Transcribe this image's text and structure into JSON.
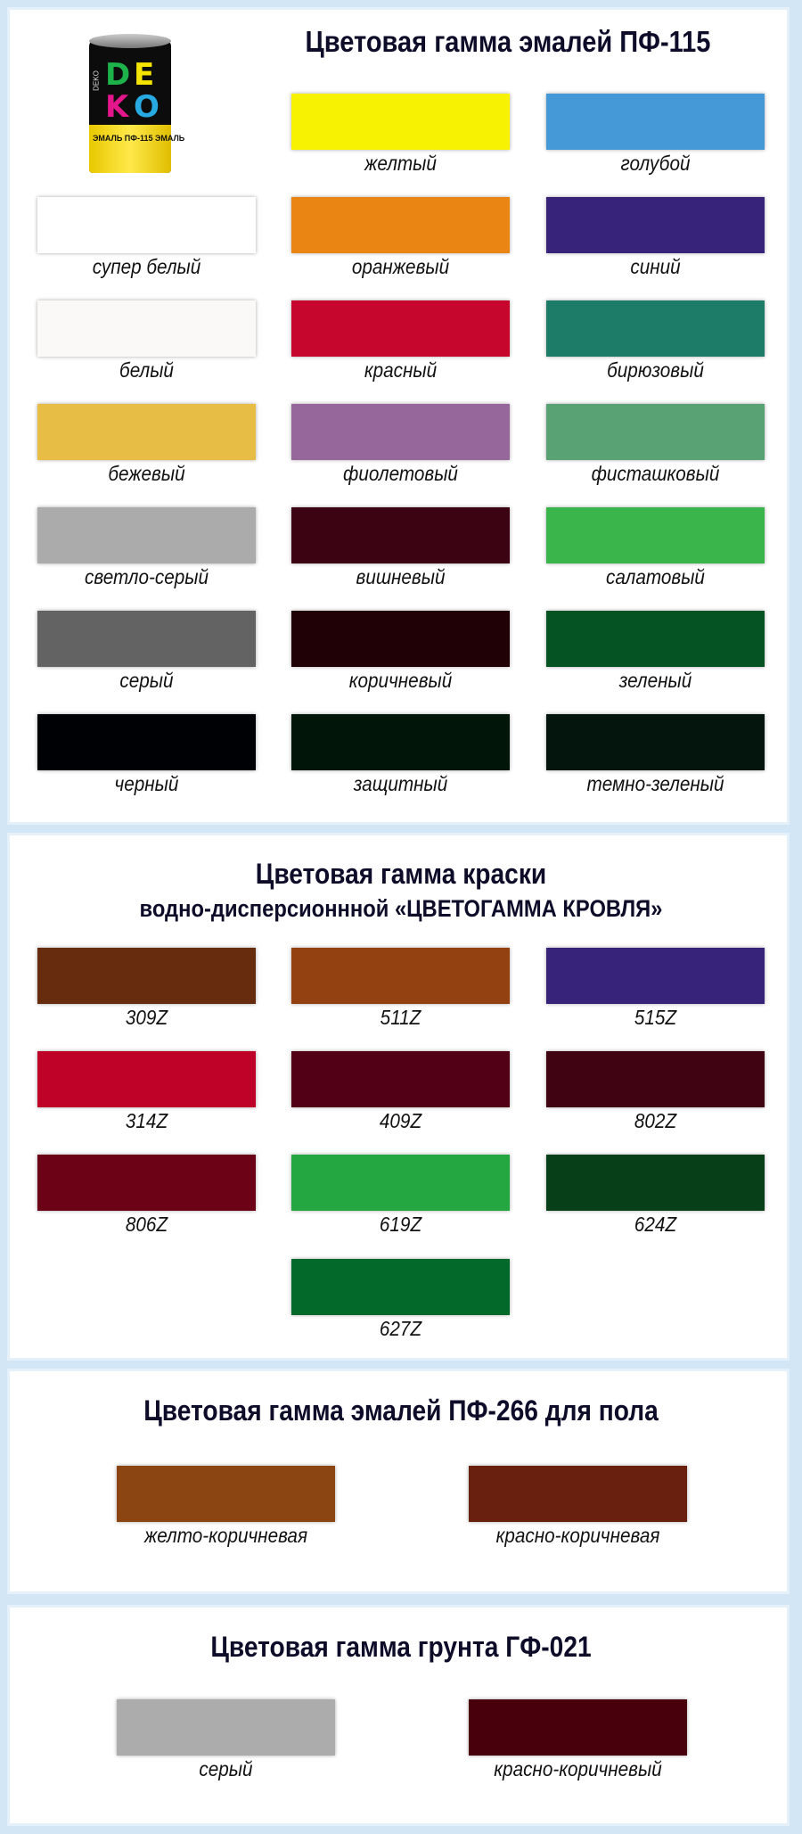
{
  "sections": [
    {
      "title": "Цветовая гамма эмалей ПФ-115",
      "product_image": {
        "brand": "DEKO",
        "band_text": "ЭМАЛЬ ПФ-115 ЭМАЛЬ"
      },
      "swatches": [
        {
          "label": "желтый",
          "color": "#f7f201"
        },
        {
          "label": "голубой",
          "color": "#4599d6"
        },
        {
          "label": "супер белый",
          "color": "#ffffff"
        },
        {
          "label": "оранжевый",
          "color": "#ea8513"
        },
        {
          "label": "синий",
          "color": "#372379"
        },
        {
          "label": "белый",
          "color": "#fbf9f7"
        },
        {
          "label": "красный",
          "color": "#c6062c"
        },
        {
          "label": "бирюзовый",
          "color": "#1c7c68"
        },
        {
          "label": "бежевый",
          "color": "#e8bd45"
        },
        {
          "label": "фиолетовый",
          "color": "#96679a"
        },
        {
          "label": "фисташковый",
          "color": "#58a273"
        },
        {
          "label": "светло-серый",
          "color": "#ababab"
        },
        {
          "label": "вишневый",
          "color": "#3c0312"
        },
        {
          "label": "салатовый",
          "color": "#3ab54b"
        },
        {
          "label": "серый",
          "color": "#636363"
        },
        {
          "label": "коричневый",
          "color": "#200106"
        },
        {
          "label": "зеленый",
          "color": "#055322"
        },
        {
          "label": "черный",
          "color": "#000104"
        },
        {
          "label": "защитный",
          "color": "#021509"
        },
        {
          "label": "темно-зеленый",
          "color": "#03150d"
        }
      ]
    },
    {
      "title": "Цветовая гамма краски",
      "subtitle": "водно-дисперсионнной «ЦВЕТОГАММА КРОВЛЯ»",
      "swatches": [
        {
          "label": "309Z",
          "color": "#672c0d"
        },
        {
          "label": "511Z",
          "color": "#944112"
        },
        {
          "label": "515Z",
          "color": "#37247a"
        },
        {
          "label": "314Z",
          "color": "#bf0228"
        },
        {
          "label": "409Z",
          "color": "#520015"
        },
        {
          "label": "802Z",
          "color": "#3f0312"
        },
        {
          "label": "806Z",
          "color": "#6c0215"
        },
        {
          "label": "619Z",
          "color": "#24a640"
        },
        {
          "label": "624Z",
          "color": "#074018"
        },
        {
          "label": "627Z",
          "color": "#03692a"
        }
      ]
    },
    {
      "title": "Цветовая гамма эмалей ПФ-266 для пола",
      "swatches": [
        {
          "label": "желто-коричневая",
          "color": "#8a4512"
        },
        {
          "label": "красно-коричневая",
          "color": "#6a200f"
        }
      ]
    },
    {
      "title": "Цветовая гамма грунта ГФ-021",
      "swatches": [
        {
          "label": "серый",
          "color": "#acacac"
        },
        {
          "label": "красно-коричневый",
          "color": "#48000c"
        }
      ]
    }
  ]
}
